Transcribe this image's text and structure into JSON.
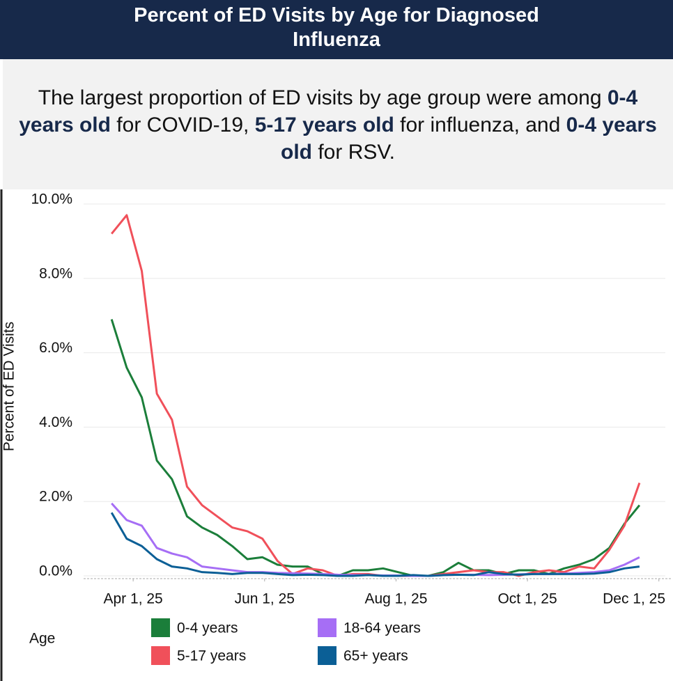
{
  "chart_data": {
    "type": "line",
    "title": "Percent of ED Visits by Age for Diagnosed Influenza",
    "subtitle": [
      {
        "text": "The largest proportion of ED visits by age group were among ",
        "bold": false
      },
      {
        "text": "0-4 years old",
        "bold": true
      },
      {
        "text": " for COVID-19, ",
        "bold": false
      },
      {
        "text": "5-17 years old",
        "bold": true
      },
      {
        "text": " for influenza, and ",
        "bold": false
      },
      {
        "text": "0-4 years old",
        "bold": true
      },
      {
        "text": " for RSV.",
        "bold": false
      }
    ],
    "y_label": "Percent of ED Visits",
    "legend_title": "Age",
    "x": [
      "2025-03-22",
      "2025-03-29",
      "2025-04-05",
      "2025-04-12",
      "2025-04-19",
      "2025-04-26",
      "2025-05-03",
      "2025-05-10",
      "2025-05-17",
      "2025-05-24",
      "2025-05-31",
      "2025-06-07",
      "2025-06-14",
      "2025-06-21",
      "2025-06-28",
      "2025-07-05",
      "2025-07-12",
      "2025-07-19",
      "2025-07-26",
      "2025-08-02",
      "2025-08-09",
      "2025-08-16",
      "2025-08-23",
      "2025-08-30",
      "2025-09-06",
      "2025-09-13",
      "2025-09-20",
      "2025-09-27",
      "2025-10-04",
      "2025-10-11",
      "2025-10-18",
      "2025-10-25",
      "2025-11-01",
      "2025-11-08",
      "2025-11-15",
      "2025-11-22"
    ],
    "xlim": [
      "2025-03-09",
      "2025-12-04"
    ],
    "xticks": [
      {
        "value": "2025-04-01",
        "label": "Apr 1, 25"
      },
      {
        "value": "2025-06-01",
        "label": "Jun 1, 25"
      },
      {
        "value": "2025-08-01",
        "label": "Aug 1, 25"
      },
      {
        "value": "2025-10-01",
        "label": "Oct 1, 25"
      },
      {
        "value": "2025-12-01",
        "label": "Dec 1, 25"
      }
    ],
    "ylim": [
      0,
      10
    ],
    "yticks": [
      {
        "value": 0,
        "label": "0.0%"
      },
      {
        "value": 2,
        "label": "2.0%"
      },
      {
        "value": 4,
        "label": "4.0%"
      },
      {
        "value": 6,
        "label": "6.0%"
      },
      {
        "value": 8,
        "label": "8.0%"
      },
      {
        "value": 10,
        "label": "10.0%"
      }
    ],
    "grid": true,
    "series": [
      {
        "name": "0-4 years",
        "color": "#1b7e3a",
        "values": [
          6.9,
          5.6,
          4.8,
          3.1,
          2.6,
          1.6,
          1.3,
          1.1,
          0.8,
          0.45,
          0.5,
          0.3,
          0.25,
          0.25,
          0.05,
          0.0,
          0.15,
          0.15,
          0.2,
          0.1,
          0.0,
          0.0,
          0.1,
          0.35,
          0.15,
          0.15,
          0.05,
          0.15,
          0.15,
          0.05,
          0.2,
          0.3,
          0.45,
          0.75,
          1.4,
          1.9
        ]
      },
      {
        "name": "5-17 years",
        "color": "#f0505a",
        "values": [
          9.2,
          9.7,
          8.2,
          4.9,
          4.2,
          2.4,
          1.9,
          1.6,
          1.3,
          1.2,
          1.0,
          0.4,
          0.05,
          0.2,
          0.15,
          0.0,
          0.05,
          0.05,
          0.0,
          0.0,
          0.0,
          0.0,
          0.05,
          0.1,
          0.15,
          0.1,
          0.1,
          0.0,
          0.1,
          0.15,
          0.1,
          0.25,
          0.2,
          0.7,
          1.35,
          2.5
        ]
      },
      {
        "name": "18-64 years",
        "color": "#a66ef5",
        "values": [
          1.95,
          1.5,
          1.35,
          0.75,
          0.6,
          0.5,
          0.25,
          0.2,
          0.15,
          0.1,
          0.1,
          0.08,
          0.07,
          0.06,
          0.05,
          0.03,
          0.02,
          0.02,
          0.01,
          0.01,
          0.0,
          0.0,
          0.02,
          0.03,
          0.03,
          0.02,
          0.03,
          0.04,
          0.05,
          0.05,
          0.06,
          0.08,
          0.1,
          0.15,
          0.3,
          0.5
        ]
      },
      {
        "name": "65+ years",
        "color": "#0b5f96",
        "values": [
          1.7,
          1.0,
          0.8,
          0.45,
          0.25,
          0.2,
          0.1,
          0.08,
          0.05,
          0.08,
          0.08,
          0.05,
          0.02,
          0.03,
          0.02,
          0.0,
          0.0,
          0.02,
          0.0,
          0.0,
          0.02,
          0.0,
          0.02,
          0.03,
          0.02,
          0.1,
          0.05,
          0.03,
          0.05,
          0.05,
          0.05,
          0.05,
          0.06,
          0.1,
          0.2,
          0.25
        ]
      }
    ]
  }
}
